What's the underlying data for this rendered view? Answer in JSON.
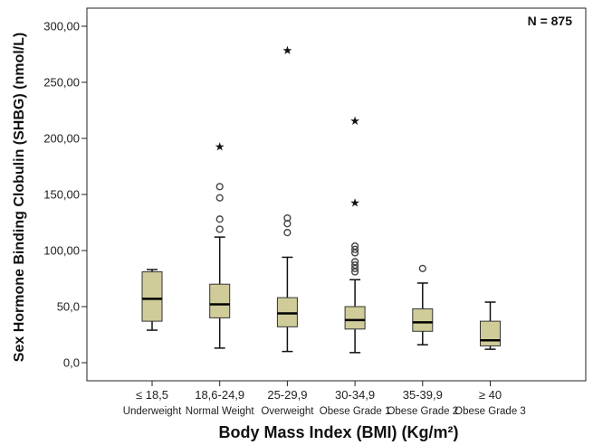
{
  "chart_data": {
    "type": "boxplot",
    "annotation": "N = 875",
    "xlabel": "Body Mass Index (BMI) (Kg/m²)",
    "ylabel": "Sex Hormone Binding Clobulin (SHBG) (nmol/L)",
    "ylim": [
      -10,
      310
    ],
    "yticks": [
      "0,0",
      "50,0",
      "100,00",
      "150,00",
      "200,00",
      "250,00",
      "300,00"
    ],
    "ytick_values": [
      0,
      50,
      100,
      150,
      200,
      250,
      300
    ],
    "box_color": "#cfcc99",
    "categories": [
      {
        "label": "≤ 18,5",
        "sublabel": "Underweight",
        "min": 29,
        "q1": 37,
        "median": 57,
        "q3": 81,
        "max": 83,
        "outliers": [],
        "extremes": []
      },
      {
        "label": "18,6-24,9",
        "sublabel": "Normal Weight",
        "min": 13,
        "q1": 40,
        "median": 52,
        "q3": 70,
        "max": 112,
        "outliers": [
          119,
          128,
          147,
          157
        ],
        "extremes": [
          193
        ]
      },
      {
        "label": "25-29,9",
        "sublabel": "Overweight",
        "min": 10,
        "q1": 32,
        "median": 44,
        "q3": 58,
        "max": 94,
        "outliers": [
          116,
          124,
          129
        ],
        "extremes": [
          279
        ]
      },
      {
        "label": "30-34,9",
        "sublabel": "Obese Grade 1",
        "min": 9,
        "q1": 30,
        "median": 38,
        "q3": 50,
        "max": 74,
        "outliers": [
          81,
          84,
          87,
          90,
          98,
          101,
          104
        ],
        "extremes": [
          143,
          216
        ]
      },
      {
        "label": "35-39,9",
        "sublabel": "Obese Grade 2",
        "min": 16,
        "q1": 28,
        "median": 36,
        "q3": 48,
        "max": 71,
        "outliers": [
          84
        ],
        "extremes": []
      },
      {
        "label": "≥ 40",
        "sublabel": "Obese Grade 3",
        "min": 12,
        "q1": 15,
        "median": 20,
        "q3": 37,
        "max": 54,
        "outliers": [],
        "extremes": []
      }
    ]
  }
}
